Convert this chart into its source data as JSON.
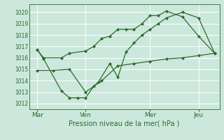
{
  "xlabel": "Pression niveau de la mer( hPa )",
  "bg_color": "#cce8dc",
  "grid_color": "#ffffff",
  "line_color": "#2d6a2d",
  "marker": "D",
  "marker_size": 2.5,
  "ylim": [
    1011.5,
    1020.7
  ],
  "yticks": [
    1012,
    1013,
    1014,
    1015,
    1016,
    1017,
    1018,
    1019,
    1020
  ],
  "x_tick_labels": [
    "Mar",
    "Ven",
    "Mer",
    "Jeu"
  ],
  "x_tick_positions": [
    0.0,
    3.0,
    7.0,
    10.0
  ],
  "xlim": [
    -0.5,
    11.3
  ],
  "series1_x": [
    0.0,
    0.4,
    1.5,
    2.0,
    3.0,
    3.5,
    4.0,
    4.5,
    5.0,
    5.5,
    6.0,
    6.5,
    7.0,
    7.5,
    8.0,
    9.0,
    10.0,
    11.0
  ],
  "series1_y": [
    1016.7,
    1016.0,
    1016.0,
    1016.4,
    1016.6,
    1017.0,
    1017.7,
    1017.9,
    1018.5,
    1018.5,
    1018.5,
    1019.0,
    1019.7,
    1019.7,
    1020.1,
    1019.6,
    1017.9,
    1016.4
  ],
  "series2_x": [
    0.0,
    0.4,
    1.5,
    2.0,
    2.5,
    3.0,
    3.5,
    3.8,
    4.5,
    5.0,
    5.5,
    6.0,
    6.5,
    7.0,
    7.5,
    8.0,
    9.0,
    10.0,
    11.0
  ],
  "series2_y": [
    1016.7,
    1015.9,
    1013.1,
    1012.5,
    1012.5,
    1012.5,
    1013.5,
    1013.9,
    1015.5,
    1014.3,
    1016.5,
    1017.3,
    1018.0,
    1018.5,
    1019.0,
    1019.5,
    1020.0,
    1019.5,
    1016.4
  ],
  "series3_x": [
    0.0,
    1.0,
    2.0,
    3.0,
    4.0,
    5.0,
    6.0,
    7.0,
    8.0,
    9.0,
    10.0,
    11.0
  ],
  "series3_y": [
    1014.9,
    1014.9,
    1015.0,
    1013.0,
    1014.0,
    1015.3,
    1015.5,
    1015.7,
    1015.9,
    1016.0,
    1016.2,
    1016.4
  ],
  "xlabel_fontsize": 7,
  "ytick_fontsize": 5.5,
  "xtick_fontsize": 6.5
}
